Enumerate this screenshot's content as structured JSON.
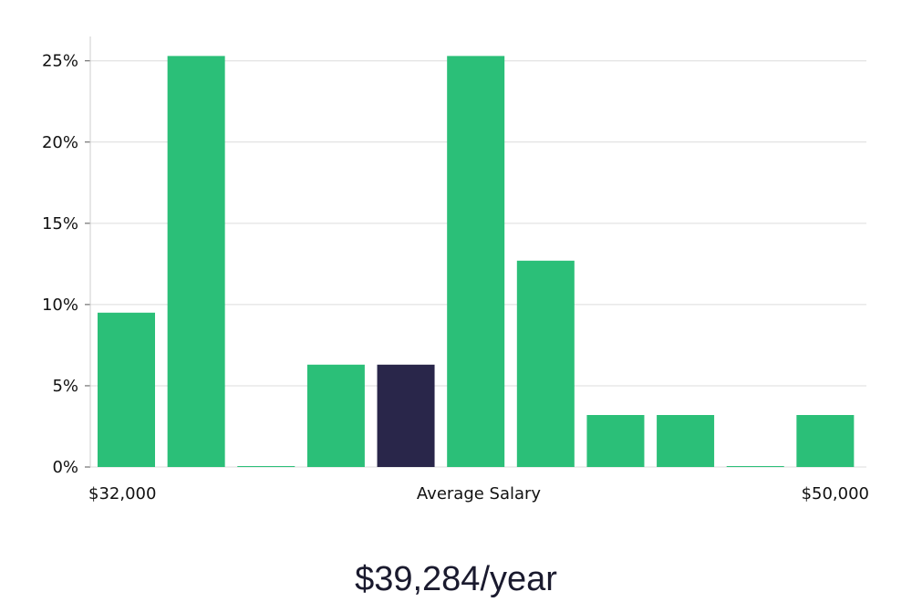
{
  "chart_data": {
    "type": "bar",
    "categories": [
      "1",
      "2",
      "3",
      "4",
      "5",
      "6",
      "7",
      "8",
      "9",
      "10",
      "11"
    ],
    "values": [
      9.5,
      25.3,
      0,
      6.3,
      6.3,
      25.3,
      12.7,
      3.2,
      3.2,
      0,
      3.2
    ],
    "highlight_index": 4,
    "ylim": [
      0,
      26.5
    ],
    "yticks": [
      0,
      5,
      10,
      15,
      20,
      25
    ],
    "ytick_labels": [
      "0%",
      "5%",
      "10%",
      "15%",
      "20%",
      "25%"
    ],
    "x_min_label": "$32,000",
    "x_mid_label": "Average Salary",
    "x_max_label": "$50,000",
    "grid": true,
    "colors": {
      "bar": "#2bbf78",
      "highlight": "#29264a",
      "grid": "#dcdcdc",
      "axis": "#cccccc"
    }
  },
  "headline": "$39,284/year"
}
